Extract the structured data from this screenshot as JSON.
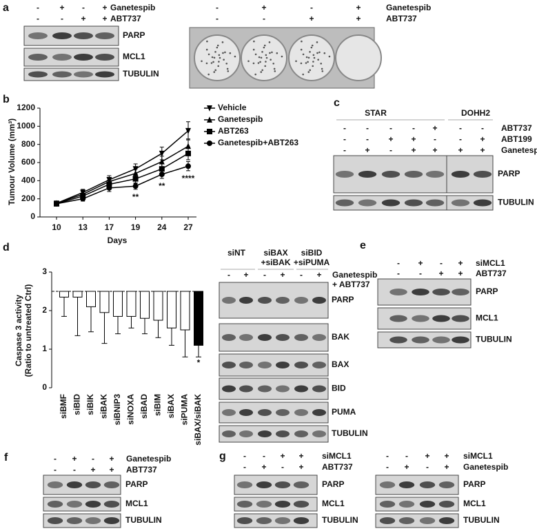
{
  "chart_data": [
    {
      "type": "line",
      "panel_label": "b",
      "y_label": "Tumour Volume (mm³)",
      "x_label": "Days",
      "categories": [
        "10",
        "13",
        "17",
        "19",
        "24",
        "27"
      ],
      "ylim": [
        0,
        1200
      ],
      "yticks": [
        0,
        200,
        400,
        600,
        800,
        1000,
        1200
      ],
      "legend": "upper right",
      "series": [
        {
          "name": "Vehicle",
          "marker": "triangle-down",
          "color": "#000000",
          "values": [
            150,
            270,
            410,
            530,
            700,
            950
          ],
          "errors": [
            15,
            35,
            45,
            55,
            70,
            100
          ]
        },
        {
          "name": "Ganetespib",
          "marker": "triangle-up",
          "color": "#000000",
          "values": [
            150,
            250,
            390,
            480,
            610,
            780
          ],
          "errors": [
            15,
            30,
            40,
            50,
            60,
            80
          ]
        },
        {
          "name": "ABT263",
          "marker": "square",
          "color": "#000000",
          "values": [
            145,
            230,
            360,
            420,
            530,
            700
          ],
          "errors": [
            10,
            30,
            45,
            50,
            55,
            70
          ]
        },
        {
          "name": "Ganetespib+ABT263",
          "marker": "circle",
          "color": "#000000",
          "values": [
            145,
            200,
            320,
            340,
            470,
            560
          ],
          "errors": [
            10,
            25,
            40,
            35,
            45,
            50
          ]
        }
      ],
      "annotations": [
        {
          "text": "**",
          "x": "19"
        },
        {
          "text": "**",
          "x": "24"
        },
        {
          "text": "****",
          "x": "27"
        }
      ]
    },
    {
      "type": "bar",
      "panel_label": "d",
      "y_label": [
        "Caspase 3 activity",
        "(Ratio to untreated Ctrl)"
      ],
      "categories": [
        "siBMF",
        "siBID",
        "siBIK",
        "siBAK",
        "siBNIP3",
        "siNOXA",
        "siBAD",
        "siBIM",
        "siBAX",
        "siPUMA",
        "siBAX/siBAK"
      ],
      "values": [
        2.35,
        2.35,
        2.1,
        1.95,
        1.85,
        1.85,
        1.8,
        1.75,
        1.55,
        1.5,
        1.1
      ],
      "errors": [
        0.5,
        1.0,
        0.65,
        0.8,
        0.45,
        0.3,
        0.4,
        0.45,
        0.45,
        0.7,
        0.3
      ],
      "colors": [
        "#ffffff",
        "#ffffff",
        "#ffffff",
        "#ffffff",
        "#ffffff",
        "#ffffff",
        "#ffffff",
        "#ffffff",
        "#ffffff",
        "#ffffff",
        "#000000"
      ],
      "reference_line": 2.5,
      "ylim": [
        0,
        3
      ],
      "yticks": [
        0,
        1,
        2,
        3
      ],
      "annotations": [
        {
          "text": "*",
          "x": "siBAX/siBAK"
        }
      ]
    }
  ],
  "blot_panels": [
    {
      "label": "a",
      "conditions": [
        {
          "name": "Ganetespib",
          "signs": [
            "-",
            "+",
            "-",
            "+"
          ]
        },
        {
          "name": "ABT737",
          "signs": [
            "-",
            "-",
            "+",
            "+"
          ]
        }
      ],
      "blots": [
        "PARP",
        "MCL1",
        "TUBULIN"
      ]
    },
    {
      "conditions": [
        {
          "name": "Ganetespib",
          "signs": [
            "-",
            "+",
            "-",
            "+"
          ]
        },
        {
          "name": "ABT737",
          "signs": [
            "-",
            "-",
            "+",
            "+"
          ]
        }
      ]
    },
    {
      "label": "c",
      "groups": [
        [
          "STAR"
        ],
        [
          "DOHH2"
        ]
      ],
      "conditions": [
        {
          "name": "ABT737",
          "signs": [
            "-",
            "-",
            "-",
            "-",
            "+",
            "-",
            "-"
          ]
        },
        {
          "name": "ABT199",
          "signs": [
            "-",
            "-",
            "+",
            "+",
            "-",
            "-",
            "+"
          ]
        },
        {
          "name": "Ganetespib",
          "signs": [
            "-",
            "+",
            "-",
            "+",
            "+",
            "+",
            "+"
          ]
        }
      ],
      "blots": [
        "PARP",
        "TUBULIN"
      ]
    },
    {
      "groups": [
        [
          "siNT"
        ],
        [
          "siBAX",
          "+siBAK"
        ],
        [
          "siBID",
          "+siPUMA"
        ]
      ],
      "conditions": [
        {
          "name": [
            "Ganetespib",
            "+ ABT737"
          ],
          "signs": [
            "-",
            "+",
            "-",
            "+",
            "-",
            "+"
          ]
        }
      ],
      "blots": [
        "PARP",
        "BAK",
        "BAX",
        "BID",
        "PUMA",
        "TUBULIN"
      ]
    },
    {
      "label": "e",
      "conditions": [
        {
          "name": "siMCL1",
          "signs": [
            "-",
            "+",
            "-",
            "+"
          ]
        },
        {
          "name": "ABT737",
          "signs": [
            "-",
            "-",
            "+",
            "+"
          ]
        }
      ],
      "blots": [
        "PARP",
        "MCL1",
        "TUBULIN"
      ]
    },
    {
      "label": "f",
      "conditions": [
        {
          "name": "Ganetespib",
          "signs": [
            "-",
            "+",
            "-",
            "+"
          ]
        },
        {
          "name": "ABT737",
          "signs": [
            "-",
            "-",
            "+",
            "+"
          ]
        }
      ],
      "blots": [
        "PARP",
        "MCL1",
        "TUBULIN"
      ]
    },
    {
      "label": "g",
      "conditions": [
        {
          "name": "siMCL1",
          "signs": [
            "-",
            "-",
            "+",
            "+"
          ]
        },
        {
          "name": "ABT737",
          "signs": [
            "-",
            "+",
            "-",
            "+"
          ]
        }
      ],
      "blots": [
        "PARP",
        "MCL1",
        "TUBULIN"
      ]
    },
    {
      "conditions": [
        {
          "name": "siMCL1",
          "signs": [
            "-",
            "-",
            "+",
            "+"
          ]
        },
        {
          "name": "Ganetespib",
          "signs": [
            "-",
            "+",
            "-",
            "+"
          ]
        }
      ],
      "blots": [
        "PARP",
        "MCL1",
        "TUBULIN"
      ]
    }
  ]
}
